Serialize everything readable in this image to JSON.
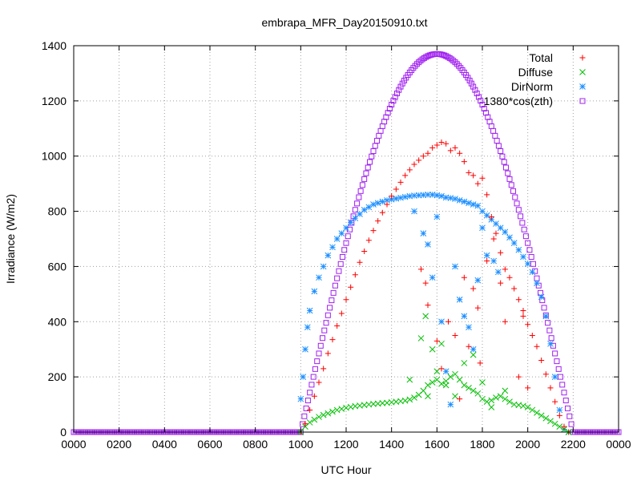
{
  "chart_data": {
    "type": "scatter",
    "title": "embrapa_MFR_Day20150910.txt",
    "xlabel": "UTC Hour",
    "ylabel": "Irradiance (W/m2)",
    "xlim": [
      0,
      2400
    ],
    "ylim": [
      0,
      1400
    ],
    "x_tick_labels": [
      "0000",
      "0200",
      "0400",
      "0600",
      "0800",
      "1000",
      "1200",
      "1400",
      "1600",
      "1800",
      "2000",
      "2200",
      "0000"
    ],
    "y_tick_labels": [
      "0",
      "200",
      "400",
      "600",
      "800",
      "1000",
      "1200",
      "1400"
    ],
    "grid": true,
    "legend_position": "top-right",
    "series": [
      {
        "name": "Total",
        "marker": "plus",
        "color": "#ff0000",
        "points": [
          [
            1000,
            0
          ],
          [
            1020,
            30
          ],
          [
            1040,
            80
          ],
          [
            1060,
            130
          ],
          [
            1080,
            180
          ],
          [
            1100,
            230
          ],
          [
            1120,
            285
          ],
          [
            1140,
            335
          ],
          [
            1160,
            385
          ],
          [
            1180,
            430
          ],
          [
            1200,
            480
          ],
          [
            1220,
            525
          ],
          [
            1240,
            570
          ],
          [
            1260,
            615
          ],
          [
            1280,
            655
          ],
          [
            1300,
            695
          ],
          [
            1320,
            730
          ],
          [
            1340,
            765
          ],
          [
            1360,
            795
          ],
          [
            1380,
            825
          ],
          [
            1400,
            855
          ],
          [
            1420,
            880
          ],
          [
            1440,
            905
          ],
          [
            1460,
            930
          ],
          [
            1480,
            950
          ],
          [
            1500,
            970
          ],
          [
            1520,
            985
          ],
          [
            1540,
            1000
          ],
          [
            1560,
            1010
          ],
          [
            1580,
            1030
          ],
          [
            1600,
            1040
          ],
          [
            1620,
            1050
          ],
          [
            1640,
            1045
          ],
          [
            1660,
            1020
          ],
          [
            1680,
            1030
          ],
          [
            1700,
            1010
          ],
          [
            1720,
            980
          ],
          [
            1740,
            940
          ],
          [
            1760,
            930
          ],
          [
            1780,
            900
          ],
          [
            1800,
            920
          ],
          [
            1820,
            860
          ],
          [
            1840,
            780
          ],
          [
            1860,
            720
          ],
          [
            1880,
            650
          ],
          [
            1900,
            590
          ],
          [
            1920,
            560
          ],
          [
            1940,
            520
          ],
          [
            1960,
            480
          ],
          [
            1980,
            440
          ],
          [
            2000,
            390
          ],
          [
            2020,
            350
          ],
          [
            2040,
            310
          ],
          [
            2060,
            260
          ],
          [
            2080,
            210
          ],
          [
            2100,
            160
          ],
          [
            2120,
            110
          ],
          [
            2140,
            60
          ],
          [
            2160,
            20
          ],
          [
            2180,
            0
          ],
          [
            1530,
            590
          ],
          [
            1550,
            540
          ],
          [
            1560,
            460
          ],
          [
            1600,
            330
          ],
          [
            1620,
            230
          ],
          [
            1650,
            400
          ],
          [
            1680,
            350
          ],
          [
            1700,
            120
          ],
          [
            1720,
            560
          ],
          [
            1740,
            310
          ],
          [
            1760,
            520
          ],
          [
            1780,
            450
          ],
          [
            1790,
            250
          ],
          [
            1820,
            620
          ],
          [
            1850,
            700
          ],
          [
            1880,
            540
          ],
          [
            1900,
            400
          ],
          [
            1960,
            200
          ],
          [
            1980,
            420
          ],
          [
            2000,
            160
          ]
        ]
      },
      {
        "name": "Diffuse",
        "marker": "cross",
        "color": "#00c000",
        "points": [
          [
            1000,
            0
          ],
          [
            1020,
            20
          ],
          [
            1040,
            35
          ],
          [
            1060,
            45
          ],
          [
            1080,
            55
          ],
          [
            1100,
            62
          ],
          [
            1120,
            68
          ],
          [
            1140,
            74
          ],
          [
            1160,
            80
          ],
          [
            1180,
            84
          ],
          [
            1200,
            88
          ],
          [
            1220,
            91
          ],
          [
            1240,
            94
          ],
          [
            1260,
            96
          ],
          [
            1280,
            98
          ],
          [
            1300,
            100
          ],
          [
            1320,
            102
          ],
          [
            1340,
            103
          ],
          [
            1360,
            105
          ],
          [
            1380,
            106
          ],
          [
            1400,
            108
          ],
          [
            1420,
            110
          ],
          [
            1440,
            112
          ],
          [
            1460,
            114
          ],
          [
            1480,
            118
          ],
          [
            1500,
            125
          ],
          [
            1520,
            135
          ],
          [
            1540,
            150
          ],
          [
            1560,
            170
          ],
          [
            1580,
            180
          ],
          [
            1600,
            190
          ],
          [
            1620,
            175
          ],
          [
            1640,
            185
          ],
          [
            1660,
            200
          ],
          [
            1680,
            210
          ],
          [
            1700,
            190
          ],
          [
            1720,
            170
          ],
          [
            1740,
            160
          ],
          [
            1760,
            150
          ],
          [
            1780,
            140
          ],
          [
            1800,
            120
          ],
          [
            1820,
            110
          ],
          [
            1840,
            115
          ],
          [
            1860,
            125
          ],
          [
            1880,
            130
          ],
          [
            1900,
            120
          ],
          [
            1920,
            110
          ],
          [
            1940,
            100
          ],
          [
            1960,
            98
          ],
          [
            1980,
            95
          ],
          [
            2000,
            90
          ],
          [
            2020,
            80
          ],
          [
            2040,
            70
          ],
          [
            2060,
            60
          ],
          [
            2080,
            50
          ],
          [
            2100,
            40
          ],
          [
            2120,
            30
          ],
          [
            2140,
            20
          ],
          [
            2160,
            10
          ],
          [
            2180,
            0
          ],
          [
            1480,
            190
          ],
          [
            1530,
            340
          ],
          [
            1550,
            420
          ],
          [
            1560,
            130
          ],
          [
            1580,
            300
          ],
          [
            1600,
            220
          ],
          [
            1620,
            320
          ],
          [
            1640,
            170
          ],
          [
            1680,
            130
          ],
          [
            1720,
            250
          ],
          [
            1760,
            280
          ],
          [
            1800,
            180
          ],
          [
            1840,
            90
          ],
          [
            1900,
            150
          ]
        ]
      },
      {
        "name": "DirNorm",
        "marker": "star",
        "color": "#1e90ff",
        "points": [
          [
            1000,
            120
          ],
          [
            1010,
            200
          ],
          [
            1020,
            300
          ],
          [
            1030,
            380
          ],
          [
            1040,
            440
          ],
          [
            1060,
            510
          ],
          [
            1080,
            560
          ],
          [
            1100,
            600
          ],
          [
            1120,
            640
          ],
          [
            1140,
            670
          ],
          [
            1160,
            700
          ],
          [
            1180,
            720
          ],
          [
            1200,
            740
          ],
          [
            1220,
            760
          ],
          [
            1240,
            775
          ],
          [
            1260,
            790
          ],
          [
            1280,
            805
          ],
          [
            1300,
            815
          ],
          [
            1320,
            825
          ],
          [
            1340,
            830
          ],
          [
            1360,
            835
          ],
          [
            1380,
            840
          ],
          [
            1400,
            843
          ],
          [
            1420,
            846
          ],
          [
            1440,
            849
          ],
          [
            1460,
            852
          ],
          [
            1480,
            855
          ],
          [
            1500,
            857
          ],
          [
            1520,
            858
          ],
          [
            1540,
            859
          ],
          [
            1560,
            860
          ],
          [
            1580,
            860
          ],
          [
            1600,
            858
          ],
          [
            1620,
            855
          ],
          [
            1640,
            850
          ],
          [
            1660,
            848
          ],
          [
            1680,
            845
          ],
          [
            1700,
            840
          ],
          [
            1720,
            835
          ],
          [
            1740,
            830
          ],
          [
            1760,
            825
          ],
          [
            1780,
            820
          ],
          [
            1800,
            800
          ],
          [
            1820,
            785
          ],
          [
            1840,
            770
          ],
          [
            1860,
            755
          ],
          [
            1880,
            740
          ],
          [
            1900,
            725
          ],
          [
            1920,
            705
          ],
          [
            1940,
            685
          ],
          [
            1960,
            660
          ],
          [
            1980,
            635
          ],
          [
            2000,
            610
          ],
          [
            2020,
            580
          ],
          [
            2040,
            540
          ],
          [
            2060,
            490
          ],
          [
            2080,
            420
          ],
          [
            2100,
            320
          ],
          [
            2120,
            200
          ],
          [
            2140,
            80
          ],
          [
            2160,
            10
          ],
          [
            2180,
            0
          ],
          [
            1500,
            800
          ],
          [
            1540,
            720
          ],
          [
            1560,
            680
          ],
          [
            1580,
            560
          ],
          [
            1600,
            780
          ],
          [
            1620,
            400
          ],
          [
            1640,
            220
          ],
          [
            1660,
            100
          ],
          [
            1680,
            600
          ],
          [
            1700,
            480
          ],
          [
            1720,
            420
          ],
          [
            1740,
            380
          ],
          [
            1760,
            300
          ],
          [
            1780,
            550
          ],
          [
            1800,
            740
          ],
          [
            1820,
            640
          ],
          [
            1850,
            620
          ],
          [
            1870,
            580
          ]
        ]
      },
      {
        "name": "1380*cos(zth)",
        "marker": "square",
        "color": "#a020f0",
        "curve": {
          "sunrise": 1000,
          "solar_noon": 1600,
          "sunset": 2200,
          "peak": 1370
        }
      }
    ]
  }
}
